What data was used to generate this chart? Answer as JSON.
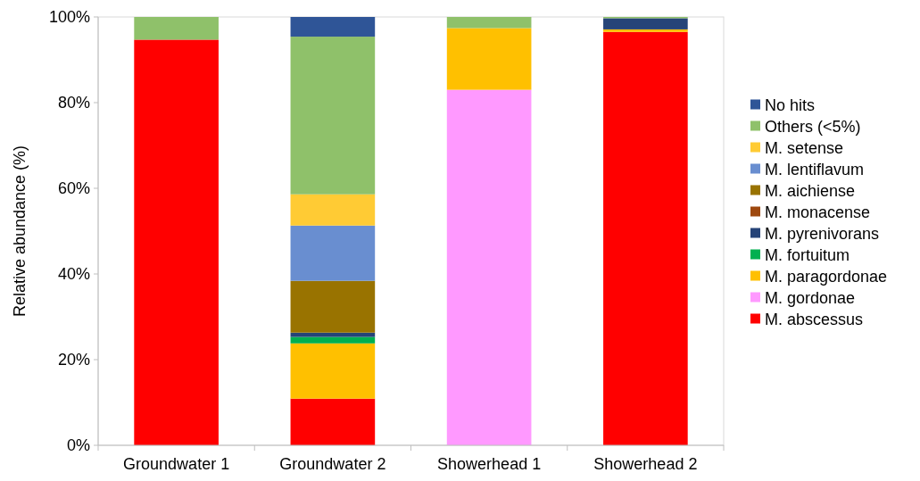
{
  "chart_data": {
    "type": "bar",
    "stacked": true,
    "ylabel": "Relative abundance (%)",
    "categories": [
      "Groundwater 1",
      "Groundwater 2",
      "Showerhead 1",
      "Showerhead 2"
    ],
    "ylim": [
      0,
      100
    ],
    "yticks": [
      {
        "value": 0,
        "label": "0%"
      },
      {
        "value": 20,
        "label": "20%"
      },
      {
        "value": 40,
        "label": "40%"
      },
      {
        "value": 60,
        "label": "60%"
      },
      {
        "value": 80,
        "label": "80%"
      },
      {
        "value": 100,
        "label": "100%"
      }
    ],
    "legend": "right",
    "grid": false,
    "series": [
      {
        "name": "M. abscessus",
        "color": "#ff0000",
        "values": [
          94.7,
          10.9,
          0,
          96.5
        ]
      },
      {
        "name": "M. gordonae",
        "color": "#ff99ff",
        "values": [
          0,
          0,
          83.0,
          0
        ]
      },
      {
        "name": "M. paragordonae",
        "color": "#ffc000",
        "values": [
          0,
          12.9,
          14.4,
          0.6
        ]
      },
      {
        "name": "M. fortuitum",
        "color": "#00b050",
        "values": [
          0,
          1.5,
          0,
          0
        ]
      },
      {
        "name": "M. pyrenivorans",
        "color": "#264478",
        "values": [
          0,
          1.0,
          0,
          2.6
        ]
      },
      {
        "name": "M. monacense",
        "color": "#9e480e",
        "values": [
          0,
          0,
          0,
          0
        ]
      },
      {
        "name": "M. aichiense",
        "color": "#997300",
        "values": [
          0,
          12.1,
          0,
          0
        ]
      },
      {
        "name": "M. lentiflavum",
        "color": "#698ed0",
        "values": [
          0,
          12.9,
          0,
          0
        ]
      },
      {
        "name": "M. setense",
        "color": "#ffcb34",
        "values": [
          0,
          7.3,
          0,
          0
        ]
      },
      {
        "name": "Others (<5%)",
        "color": "#8fc16a",
        "values": [
          5.3,
          36.8,
          2.6,
          0.3
        ]
      },
      {
        "name": "No hits",
        "color": "#2f5597",
        "values": [
          0,
          4.6,
          0,
          0
        ]
      }
    ]
  }
}
